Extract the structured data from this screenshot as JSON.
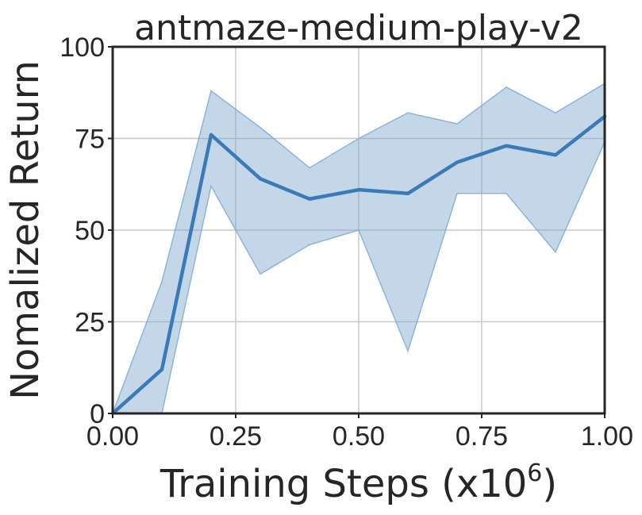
{
  "chart_data": {
    "type": "line",
    "title": "antmaze-medium-play-v2",
    "xlabel_prefix": "Training Steps (x10",
    "xlabel_exponent": "6",
    "xlabel_suffix": ")",
    "ylabel": "Nomalized Return",
    "xlim": [
      0.0,
      1.0
    ],
    "ylim": [
      0,
      100
    ],
    "xticks": [
      0.0,
      0.25,
      0.5,
      0.75,
      1.0
    ],
    "xtick_labels": [
      "0.00",
      "0.25",
      "0.50",
      "0.75",
      "1.00"
    ],
    "yticks": [
      0,
      25,
      50,
      75,
      100
    ],
    "ytick_labels": [
      "0",
      "25",
      "50",
      "75",
      "100"
    ],
    "grid": true,
    "colors": {
      "line": "#3a7ab8",
      "band": "#7aa7cf"
    },
    "series": [
      {
        "x": [
          0.0,
          0.1,
          0.2,
          0.3,
          0.4,
          0.5,
          0.6,
          0.7,
          0.8,
          0.9,
          1.0
        ],
        "y": [
          0,
          12,
          76,
          64,
          58.5,
          61,
          60,
          68.5,
          73,
          70.5,
          81
        ],
        "upper": [
          0,
          36,
          88,
          78,
          67,
          75,
          82,
          79,
          89,
          82,
          90
        ],
        "lower": [
          0,
          0,
          62,
          38,
          46,
          50,
          17,
          60,
          60,
          44,
          74
        ]
      }
    ]
  }
}
